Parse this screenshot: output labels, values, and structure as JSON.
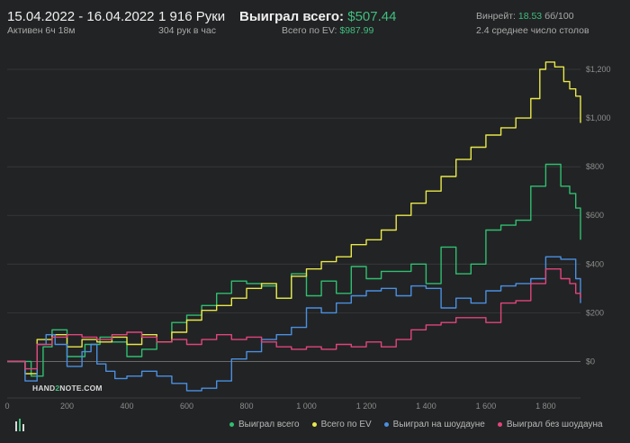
{
  "header": {
    "date_range": "15.04.2022 - 16.04.2022",
    "active": "Активен 6ч 18м",
    "hands": "1 916 Руки",
    "hands_per_hour": "304 рук в час",
    "won_total_label": "Выиграл всего:",
    "won_total_value": "$507.44",
    "ev_total_label": "Всего по EV:",
    "ev_total_value": "$987.99",
    "winrate_label": "Винрейт:",
    "winrate_value": "18.53",
    "winrate_unit": "бб/100",
    "tables": "2.4 среднее число столов"
  },
  "logo": {
    "text_a": "HAND",
    "text_b": "2",
    "text_c": "NOTE.COM"
  },
  "colors": {
    "won": "#2fbf71",
    "ev": "#e8e84a",
    "showdown": "#4a90e2",
    "nonsd": "#e0457b",
    "background": "#222324",
    "grid": "#3a3b3c",
    "zero": "#6a6a6a"
  },
  "chart_data": {
    "type": "line",
    "xlabel": "",
    "ylabel": "",
    "xlim": [
      0,
      1916
    ],
    "ylim": [
      -150,
      1300
    ],
    "x_ticks": [
      0,
      200,
      400,
      600,
      800,
      1000,
      1200,
      1400,
      1600,
      1800
    ],
    "x_tick_labels": [
      "0",
      "200",
      "400",
      "600",
      "800",
      "1 000",
      "1 200",
      "1 400",
      "1 600",
      "1 800"
    ],
    "y_ticks": [
      0,
      200,
      400,
      600,
      800,
      1000,
      1200
    ],
    "y_tick_labels": [
      "$0",
      "$200",
      "$400",
      "$600",
      "$800",
      "$1,000",
      "$1,200"
    ],
    "legend_position": "bottom-right",
    "series": [
      {
        "name": "Выиграл всего",
        "color": "#2fbf71",
        "x": [
          0,
          80,
          120,
          150,
          200,
          260,
          310,
          350,
          400,
          450,
          500,
          550,
          600,
          650,
          700,
          750,
          800,
          850,
          900,
          950,
          1000,
          1050,
          1100,
          1150,
          1200,
          1250,
          1300,
          1350,
          1400,
          1450,
          1500,
          1550,
          1600,
          1650,
          1700,
          1750,
          1800,
          1850,
          1880,
          1900,
          1916
        ],
        "y": [
          0,
          -60,
          60,
          130,
          20,
          70,
          100,
          80,
          20,
          50,
          80,
          160,
          190,
          230,
          280,
          330,
          320,
          310,
          260,
          360,
          270,
          330,
          280,
          390,
          340,
          370,
          370,
          400,
          320,
          470,
          360,
          400,
          540,
          560,
          580,
          720,
          810,
          720,
          690,
          630,
          500
        ]
      },
      {
        "name": "Всего по EV",
        "color": "#e8e84a",
        "x": [
          0,
          60,
          100,
          150,
          200,
          250,
          300,
          350,
          400,
          450,
          500,
          550,
          600,
          650,
          700,
          750,
          800,
          850,
          900,
          950,
          1000,
          1050,
          1100,
          1150,
          1200,
          1250,
          1300,
          1350,
          1400,
          1450,
          1500,
          1550,
          1600,
          1650,
          1700,
          1750,
          1780,
          1800,
          1830,
          1860,
          1880,
          1900,
          1916
        ],
        "y": [
          0,
          -50,
          90,
          110,
          60,
          90,
          80,
          100,
          70,
          110,
          80,
          120,
          170,
          210,
          230,
          260,
          300,
          320,
          260,
          350,
          380,
          410,
          430,
          480,
          500,
          540,
          600,
          650,
          700,
          760,
          830,
          880,
          930,
          960,
          1000,
          1080,
          1200,
          1230,
          1210,
          1150,
          1120,
          1090,
          980
        ]
      },
      {
        "name": "Выиграл на шоудауне",
        "color": "#4a90e2",
        "x": [
          0,
          60,
          100,
          130,
          160,
          200,
          250,
          280,
          300,
          330,
          360,
          400,
          450,
          500,
          550,
          600,
          650,
          700,
          750,
          800,
          850,
          900,
          950,
          1000,
          1050,
          1100,
          1150,
          1200,
          1250,
          1300,
          1350,
          1400,
          1450,
          1500,
          1550,
          1600,
          1650,
          1700,
          1750,
          1800,
          1850,
          1880,
          1900,
          1916
        ],
        "y": [
          0,
          -80,
          70,
          110,
          70,
          -20,
          40,
          70,
          -10,
          -40,
          -70,
          -60,
          -40,
          -60,
          -90,
          -120,
          -110,
          -80,
          10,
          40,
          90,
          110,
          140,
          220,
          200,
          240,
          270,
          290,
          300,
          270,
          310,
          300,
          220,
          260,
          240,
          290,
          310,
          320,
          340,
          430,
          420,
          420,
          340,
          240
        ]
      },
      {
        "name": "Выиграл без шоудауна",
        "color": "#e0457b",
        "x": [
          0,
          60,
          100,
          150,
          200,
          250,
          300,
          350,
          400,
          450,
          500,
          550,
          600,
          650,
          700,
          750,
          800,
          850,
          900,
          950,
          1000,
          1050,
          1100,
          1150,
          1200,
          1250,
          1300,
          1350,
          1400,
          1450,
          1500,
          1550,
          1600,
          1650,
          1700,
          1750,
          1800,
          1850,
          1880,
          1900,
          1916
        ],
        "y": [
          0,
          -30,
          70,
          100,
          110,
          100,
          90,
          110,
          120,
          100,
          80,
          90,
          70,
          90,
          110,
          90,
          100,
          80,
          60,
          50,
          60,
          50,
          70,
          60,
          80,
          60,
          90,
          130,
          150,
          160,
          180,
          180,
          160,
          240,
          250,
          320,
          380,
          340,
          320,
          280,
          260
        ]
      }
    ]
  }
}
